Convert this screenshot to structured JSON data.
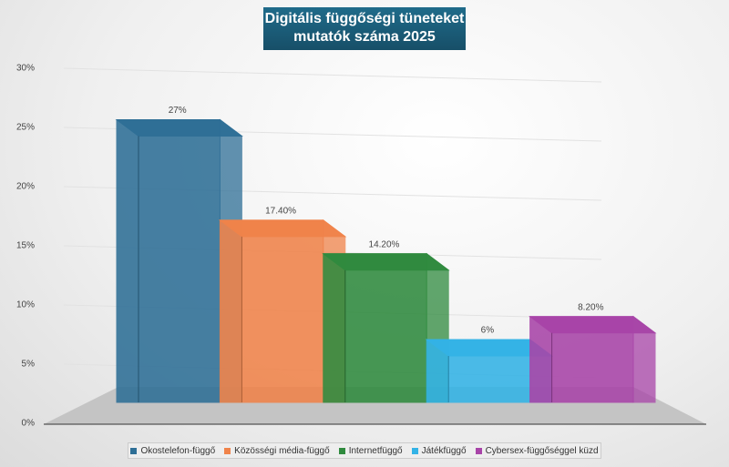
{
  "chart_data": {
    "type": "bar3d",
    "title": "Digitális függőségi tüneteket mutatók száma 2025",
    "categories": [
      "Okostelefon-függő",
      "Közösségi média-függő",
      "Internetfüggő",
      "Játékfüggő",
      "Cybersex-függőséggel küzd"
    ],
    "values": [
      27,
      17.4,
      14.2,
      6,
      8.2
    ],
    "value_labels": [
      "27%",
      "17.40%",
      "14.20%",
      "6%",
      "8.20%"
    ],
    "colors": [
      "#2e6f96",
      "#f0834a",
      "#2f8a3e",
      "#33b3e6",
      "#a844a8"
    ],
    "ylim": [
      0,
      30
    ],
    "yticks": [
      {
        "value": 0,
        "label": "0%"
      },
      {
        "value": 5,
        "label": "5%"
      },
      {
        "value": 10,
        "label": "10%"
      },
      {
        "value": 15,
        "label": "15%"
      },
      {
        "value": 20,
        "label": "20%"
      },
      {
        "value": 25,
        "label": "25%"
      },
      {
        "value": 30,
        "label": "30%"
      }
    ],
    "grid": true
  }
}
